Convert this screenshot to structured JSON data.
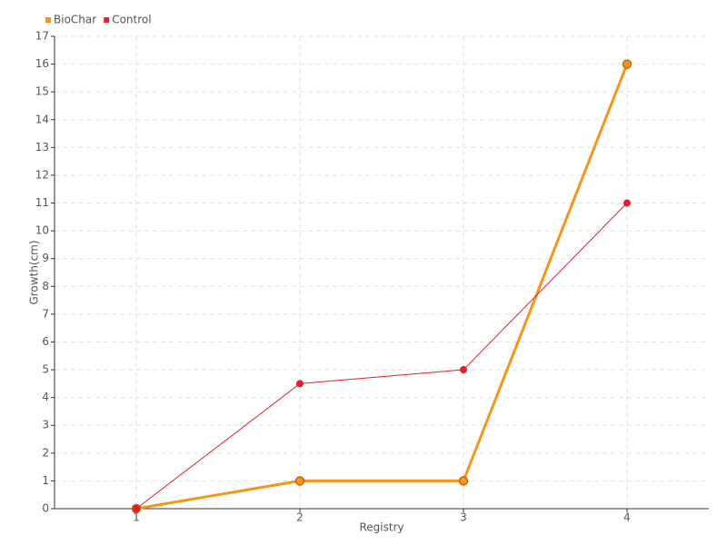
{
  "chart_data": {
    "type": "line",
    "x_label": "Registry",
    "y_label": "Growth(cm)",
    "x": [
      1,
      2,
      3,
      4
    ],
    "series": [
      {
        "name": "BioChar",
        "color": "#f7941d",
        "values": [
          0,
          1,
          1,
          16
        ]
      },
      {
        "name": "Control",
        "color": "#e3202a",
        "values": [
          0,
          4.5,
          5,
          11
        ]
      }
    ],
    "xlim": [
      0.5,
      4.5
    ],
    "xticks": [
      1,
      2,
      3,
      4
    ],
    "ylim": [
      0,
      17
    ],
    "yticks": [
      0,
      1,
      2,
      3,
      4,
      5,
      6,
      7,
      8,
      9,
      10,
      11,
      12,
      13,
      14,
      15,
      16,
      17
    ],
    "grid": true,
    "legend": "top-left"
  }
}
